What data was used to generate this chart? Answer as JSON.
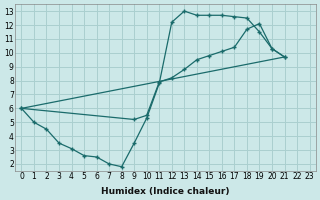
{
  "xlabel": "Humidex (Indice chaleur)",
  "xlim": [
    -0.5,
    23.5
  ],
  "ylim": [
    1.5,
    13.5
  ],
  "xticks": [
    0,
    1,
    2,
    3,
    4,
    5,
    6,
    7,
    8,
    9,
    10,
    11,
    12,
    13,
    14,
    15,
    16,
    17,
    18,
    19,
    20,
    21,
    22,
    23
  ],
  "yticks": [
    2,
    3,
    4,
    5,
    6,
    7,
    8,
    9,
    10,
    11,
    12,
    13
  ],
  "bg_color": "#cce8e8",
  "grid_color": "#aacfcf",
  "line_color": "#1a6b6b",
  "curve1_x": [
    0,
    1,
    2,
    3,
    4,
    5,
    6,
    7,
    8,
    9,
    10,
    11,
    12,
    13,
    14,
    15,
    16,
    17,
    18,
    19,
    20,
    21
  ],
  "curve1_y": [
    6.0,
    5.0,
    4.5,
    3.5,
    3.1,
    2.6,
    2.5,
    2.0,
    1.8,
    3.5,
    5.3,
    7.8,
    12.2,
    13.0,
    12.7,
    12.7,
    12.7,
    12.6,
    12.5,
    11.5,
    10.3,
    9.7
  ],
  "curve2_x": [
    0,
    9,
    10,
    11,
    12,
    13,
    14,
    15,
    16,
    17,
    18,
    19,
    20,
    21
  ],
  "curve2_y": [
    6.0,
    5.2,
    5.5,
    7.9,
    8.2,
    8.8,
    9.5,
    9.8,
    10.1,
    10.4,
    11.7,
    12.1,
    10.3,
    9.7
  ],
  "curve3_x": [
    0,
    21
  ],
  "curve3_y": [
    6.0,
    9.7
  ]
}
